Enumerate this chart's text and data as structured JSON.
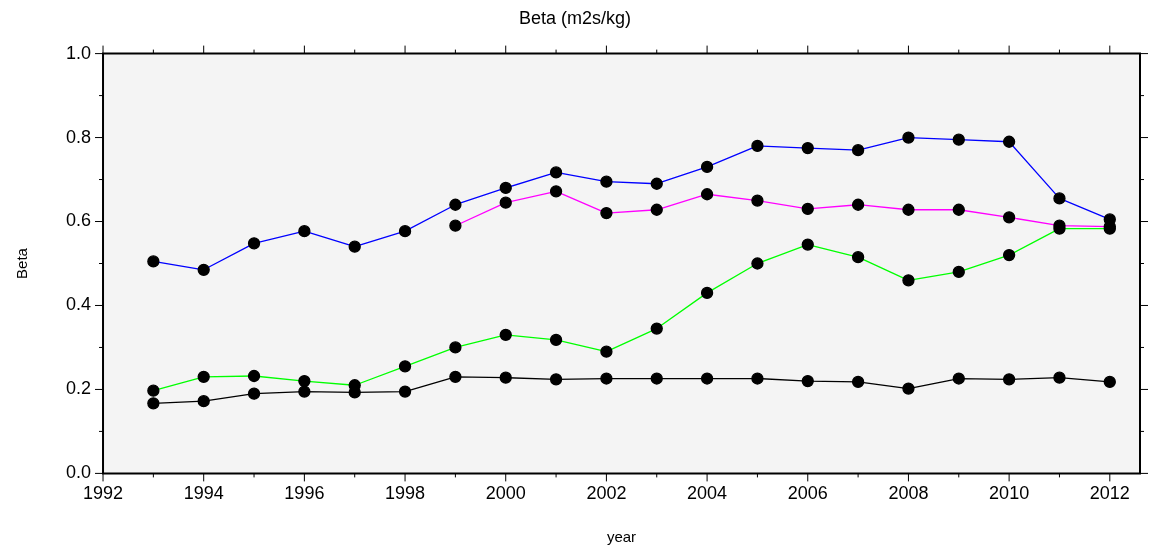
{
  "chart_data": {
    "type": "line",
    "title": "Beta (m2s/kg)",
    "xlabel": "year",
    "ylabel": "Beta",
    "x": [
      1993,
      1994,
      1995,
      1996,
      1997,
      1998,
      1999,
      2000,
      2001,
      2002,
      2003,
      2004,
      2005,
      2006,
      2007,
      2008,
      2009,
      2010,
      2011,
      2012
    ],
    "series": [
      {
        "color": "#0000ff",
        "values": [
          0.505,
          0.485,
          0.548,
          0.577,
          0.54,
          0.577,
          0.64,
          0.68,
          0.717,
          0.695,
          0.69,
          0.73,
          0.78,
          0.775,
          0.77,
          0.8,
          0.795,
          0.79,
          0.655,
          0.605
        ]
      },
      {
        "color": "#ff00ff",
        "values": [
          null,
          null,
          null,
          null,
          null,
          null,
          0.59,
          0.645,
          0.672,
          0.62,
          0.628,
          0.665,
          0.65,
          0.63,
          0.64,
          0.628,
          0.628,
          0.61,
          0.59,
          0.588
        ]
      },
      {
        "color": "#00ff00",
        "values": [
          0.197,
          0.23,
          0.232,
          0.22,
          0.21,
          0.255,
          0.3,
          0.33,
          0.318,
          0.29,
          0.345,
          0.43,
          0.5,
          0.545,
          0.515,
          0.46,
          0.48,
          0.52,
          0.583,
          0.583
        ]
      },
      {
        "color": "#000000",
        "values": [
          0.167,
          0.172,
          0.19,
          0.195,
          0.193,
          0.195,
          0.23,
          0.228,
          0.224,
          0.226,
          0.226,
          0.226,
          0.226,
          0.22,
          0.218,
          0.202,
          0.226,
          0.224,
          0.228,
          0.218
        ]
      }
    ],
    "xlim": [
      1992,
      2012.6
    ],
    "xticks": [
      1992,
      {
        "value": 1993,
        "label": null
      },
      1994,
      {
        "value": 1995,
        "label": null
      },
      1996,
      {
        "value": 1997,
        "label": null
      },
      1998,
      {
        "value": 1999,
        "label": null
      },
      2000,
      {
        "value": 2001,
        "label": null
      },
      2002,
      {
        "value": 2003,
        "label": null
      },
      2004,
      {
        "value": 2005,
        "label": null
      },
      2006,
      {
        "value": 2007,
        "label": null
      },
      2008,
      {
        "value": 2009,
        "label": null
      },
      2010,
      {
        "value": 2011,
        "label": null
      },
      2012
    ],
    "ylim": [
      0,
      1
    ],
    "yticks": [
      {
        "value": 0,
        "label": "0.0"
      },
      {
        "value": 0.1,
        "label": null
      },
      0.2,
      {
        "value": 0.3,
        "label": null
      },
      0.4,
      {
        "value": 0.5,
        "label": null
      },
      0.6,
      {
        "value": 0.7,
        "label": null
      },
      0.8,
      {
        "value": 0.9,
        "label": null
      },
      {
        "value": 1,
        "label": "1.0"
      }
    ],
    "marker": "circle",
    "line_style": "solid",
    "grid": false,
    "legend": false
  }
}
